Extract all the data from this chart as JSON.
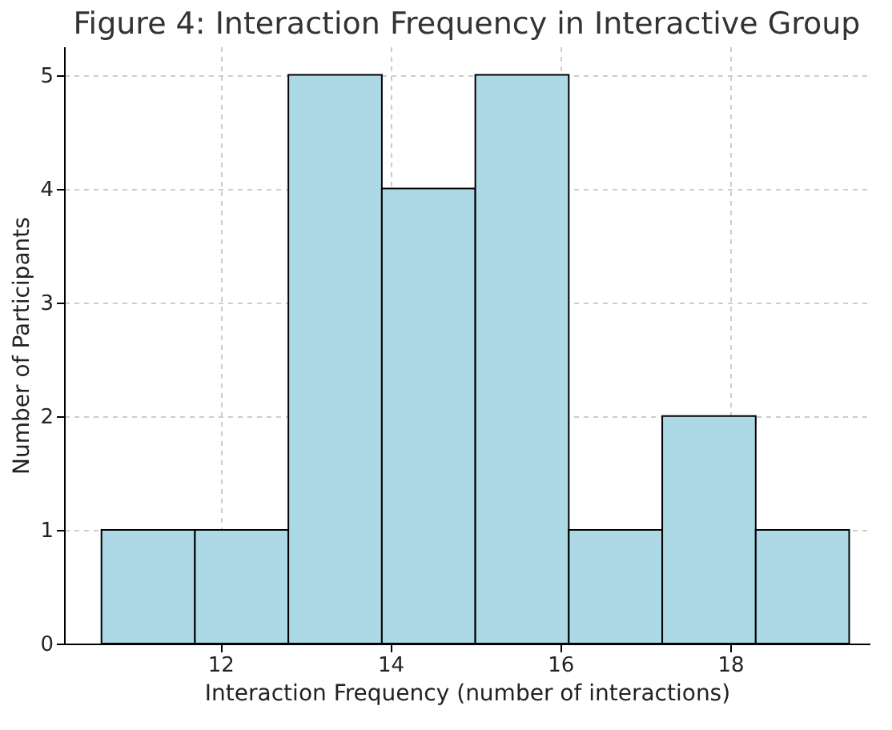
{
  "chart_data": {
    "type": "histogram",
    "title": "Figure 4: Interaction Frequency in Interactive Group",
    "xlabel": "Interaction Frequency (number of interactions)",
    "ylabel": "Number of Participants",
    "bins": [
      10.6,
      11.7,
      12.8,
      13.9,
      15.0,
      16.1,
      17.2,
      18.3,
      19.4
    ],
    "values": [
      1,
      1,
      5,
      4,
      5,
      1,
      2,
      1
    ],
    "color": "#add8e6",
    "xlim": [
      10.16,
      19.64
    ],
    "xticks": [
      12,
      14,
      16,
      18
    ],
    "ylim": [
      0,
      5.25
    ],
    "yticks": [
      0,
      1,
      2,
      3,
      4,
      5
    ],
    "grid": true
  }
}
